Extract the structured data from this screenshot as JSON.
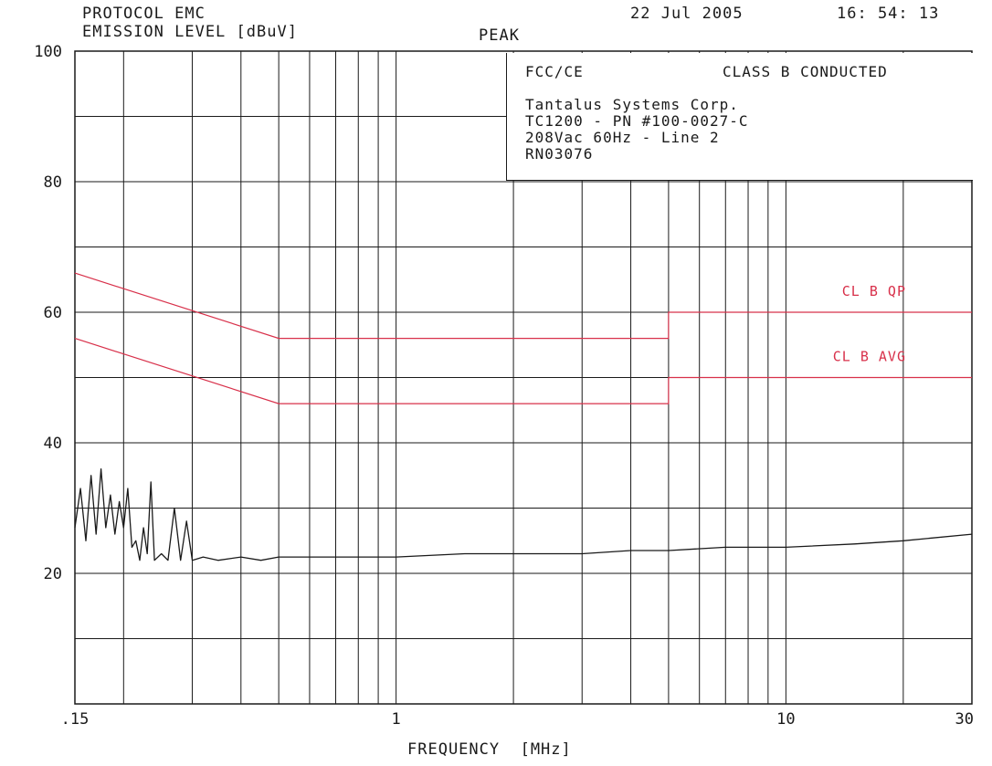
{
  "header": {
    "protocol": "PROTOCOL EMC",
    "emission_level": "EMISSION LEVEL [dBuV]",
    "detector": "PEAK",
    "date": "22 Jul 2005",
    "time": "16: 54: 13"
  },
  "info_box": {
    "standard": "FCC/CE",
    "class": "CLASS B CONDUCTED",
    "lines": [
      "Tantalus Systems Corp.",
      "TC1200 - PN #100-0027-C",
      "208Vac 60Hz - Line 2",
      "RN03076"
    ]
  },
  "chart_data": {
    "type": "line",
    "xlabel": "FREQUENCY  [MHz]",
    "ylabel": "EMISSION LEVEL [dBuV]",
    "x_scale": "log",
    "xlim": [
      0.15,
      30
    ],
    "ylim": [
      0,
      100
    ],
    "x_tick_labels": [
      {
        "value": 0.15,
        "label": ".15"
      },
      {
        "value": 1,
        "label": "1"
      },
      {
        "value": 10,
        "label": "10"
      },
      {
        "value": 30,
        "label": "30"
      }
    ],
    "y_tick_labels": [
      {
        "value": 20,
        "label": "20"
      },
      {
        "value": 40,
        "label": "40"
      },
      {
        "value": 60,
        "label": "60"
      },
      {
        "value": 80,
        "label": "80"
      },
      {
        "value": 100,
        "label": "100"
      }
    ],
    "x_gridlines": [
      0.2,
      0.3,
      0.4,
      0.5,
      0.6,
      0.7,
      0.8,
      0.9,
      2,
      3,
      4,
      5,
      6,
      7,
      8,
      9,
      20
    ],
    "y_gridlines": [
      10,
      20,
      30,
      40,
      50,
      60,
      70,
      80,
      90
    ],
    "grid": true,
    "limit_lines": [
      {
        "name": "CL B QP",
        "color": "#d8304a",
        "points": [
          [
            0.15,
            66
          ],
          [
            0.5,
            56
          ],
          [
            5,
            56
          ],
          [
            5,
            60
          ],
          [
            30,
            60
          ]
        ]
      },
      {
        "name": "CL B AVG",
        "color": "#d8304a",
        "points": [
          [
            0.15,
            56
          ],
          [
            0.5,
            46
          ],
          [
            5,
            46
          ],
          [
            5,
            50
          ],
          [
            30,
            50
          ]
        ]
      }
    ],
    "series": [
      {
        "name": "PEAK",
        "color": "#1a1a1a",
        "x": [
          0.15,
          0.155,
          0.16,
          0.165,
          0.17,
          0.175,
          0.18,
          0.185,
          0.19,
          0.195,
          0.2,
          0.205,
          0.21,
          0.215,
          0.22,
          0.225,
          0.23,
          0.235,
          0.24,
          0.25,
          0.26,
          0.27,
          0.28,
          0.29,
          0.3,
          0.32,
          0.35,
          0.4,
          0.45,
          0.5,
          0.6,
          0.7,
          0.8,
          1,
          1.5,
          2,
          3,
          4,
          5,
          7,
          10,
          15,
          20,
          30
        ],
        "y": [
          27,
          33,
          25,
          35,
          26,
          36,
          27,
          32,
          26,
          31,
          27,
          33,
          24,
          25,
          22,
          27,
          23,
          34,
          22,
          23,
          22,
          30,
          22,
          28,
          22,
          22.5,
          22,
          22.5,
          22,
          22.5,
          22.5,
          22.5,
          22.5,
          22.5,
          23,
          23,
          23,
          23.5,
          23.5,
          24,
          24,
          24.5,
          25,
          26
        ]
      }
    ]
  }
}
